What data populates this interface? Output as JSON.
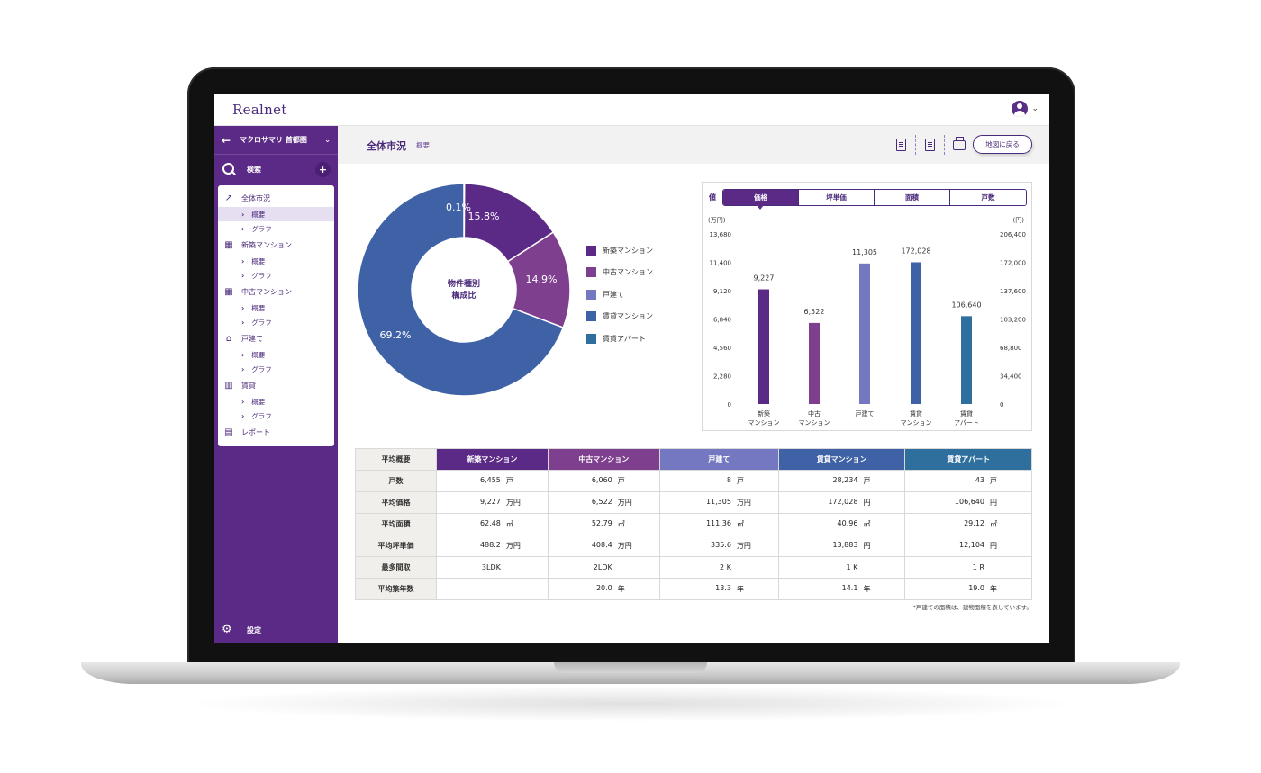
{
  "app": {
    "logo": "Realnet"
  },
  "sidebar": {
    "header_title": "マクロサマリ 首都圏",
    "search_label": "検索",
    "plus_label": "+",
    "groups": [
      {
        "label": "全体市況",
        "icon": "line-chart-icon",
        "subs": [
          "概要",
          "グラフ"
        ]
      },
      {
        "label": "新築マンション",
        "icon": "new-building-icon",
        "subs": [
          "概要",
          "グラフ"
        ]
      },
      {
        "label": "中古マンション",
        "icon": "building-icon",
        "subs": [
          "概要",
          "グラフ"
        ]
      },
      {
        "label": "戸建て",
        "icon": "house-icon",
        "subs": [
          "概要",
          "グラフ"
        ]
      },
      {
        "label": "賃貸",
        "icon": "rent-building-icon",
        "subs": [
          "概要",
          "グラフ"
        ]
      }
    ],
    "report_label": "レポート",
    "settings_label": "設定"
  },
  "page": {
    "title": "全体市況",
    "subtitle": "概要",
    "map_button": "地図に戻る"
  },
  "donut": {
    "center_line1": "物件種別",
    "center_line2": "構成比",
    "labels": [
      "15.8%",
      "14.9%",
      "69.2%",
      "0.1%"
    ]
  },
  "legend": [
    {
      "label": "新築マンション",
      "color": "#5b2a86"
    },
    {
      "label": "中古マンション",
      "color": "#7f3f8f"
    },
    {
      "label": "戸建て",
      "color": "#7378c0"
    },
    {
      "label": "賃貸マンション",
      "color": "#3f62a6"
    },
    {
      "label": "賃貸アパート",
      "color": "#2e6f9e"
    }
  ],
  "bar_panel": {
    "metric_label": "値",
    "tabs": [
      "価格",
      "坪単価",
      "面積",
      "戸数"
    ],
    "active_tab": "価格"
  },
  "chart_data": {
    "type": "bar",
    "categories": [
      [
        "新築",
        "マンション"
      ],
      [
        "中古",
        "マンション"
      ],
      [
        "戸建て"
      ],
      [
        "賃貸",
        "マンション"
      ],
      [
        "賃貸",
        "アパート"
      ]
    ],
    "values": [
      9227,
      6522,
      11305,
      172028,
      106640
    ],
    "value_labels": [
      "9,227",
      "6,522",
      "11,305",
      "172,028",
      "106,640"
    ],
    "axis": [
      "left",
      "left",
      "left",
      "right",
      "right"
    ],
    "colors": [
      "#5b2a86",
      "#7f3f8f",
      "#7378c0",
      "#3f62a6",
      "#2e6f9e"
    ],
    "ylabel_left": "(万円)",
    "ylabel_right": "(円)",
    "ylim_left": [
      0,
      13680
    ],
    "ylim_right": [
      0,
      206400
    ],
    "yticks_left": [
      "0",
      "2,280",
      "4,560",
      "6,840",
      "9,120",
      "11,400",
      "13,680"
    ],
    "yticks_right": [
      "0",
      "34,400",
      "68,800",
      "103,200",
      "137,600",
      "172,000",
      "206,400"
    ],
    "grid": false
  },
  "table": {
    "corner": "平均概要",
    "columns": [
      {
        "label": "新築マンション",
        "color": "#5b2a86"
      },
      {
        "label": "中古マンション",
        "color": "#7f3f8f"
      },
      {
        "label": "戸建て",
        "color": "#7378c0"
      },
      {
        "label": "賃貸マンション",
        "color": "#3f62a6"
      },
      {
        "label": "賃貸アパート",
        "color": "#2e6f9e"
      }
    ],
    "rows": [
      {
        "label": "戸数",
        "cells": [
          [
            "6,455",
            "戸"
          ],
          [
            "6,060",
            "戸"
          ],
          [
            "8",
            "戸"
          ],
          [
            "28,234",
            "戸"
          ],
          [
            "43",
            "戸"
          ]
        ]
      },
      {
        "label": "平均価格",
        "cells": [
          [
            "9,227",
            "万円"
          ],
          [
            "6,522",
            "万円"
          ],
          [
            "11,305",
            "万円"
          ],
          [
            "172,028",
            "円"
          ],
          [
            "106,640",
            "円"
          ]
        ]
      },
      {
        "label": "平均面積",
        "cells": [
          [
            "62.48",
            "㎡"
          ],
          [
            "52.79",
            "㎡"
          ],
          [
            "111.36",
            "㎡"
          ],
          [
            "40.96",
            "㎡"
          ],
          [
            "29.12",
            "㎡"
          ]
        ]
      },
      {
        "label": "平均坪単価",
        "cells": [
          [
            "488.2",
            "万円"
          ],
          [
            "408.4",
            "万円"
          ],
          [
            "335.6",
            "万円"
          ],
          [
            "13,883",
            "円"
          ],
          [
            "12,104",
            "円"
          ]
        ]
      },
      {
        "label": "最多間取",
        "cells": [
          [
            "3LDK",
            ""
          ],
          [
            "2LDK",
            ""
          ],
          [
            "2 K",
            ""
          ],
          [
            "1 K",
            ""
          ],
          [
            "1 R",
            ""
          ]
        ]
      },
      {
        "label": "平均築年数",
        "cells": [
          [
            "",
            ""
          ],
          [
            "20.0",
            "年"
          ],
          [
            "13.3",
            "年"
          ],
          [
            "14.1",
            "年"
          ],
          [
            "19.0",
            "年"
          ]
        ]
      }
    ]
  },
  "footnote": "*戸建ての面積は、建物面積を表しています。"
}
